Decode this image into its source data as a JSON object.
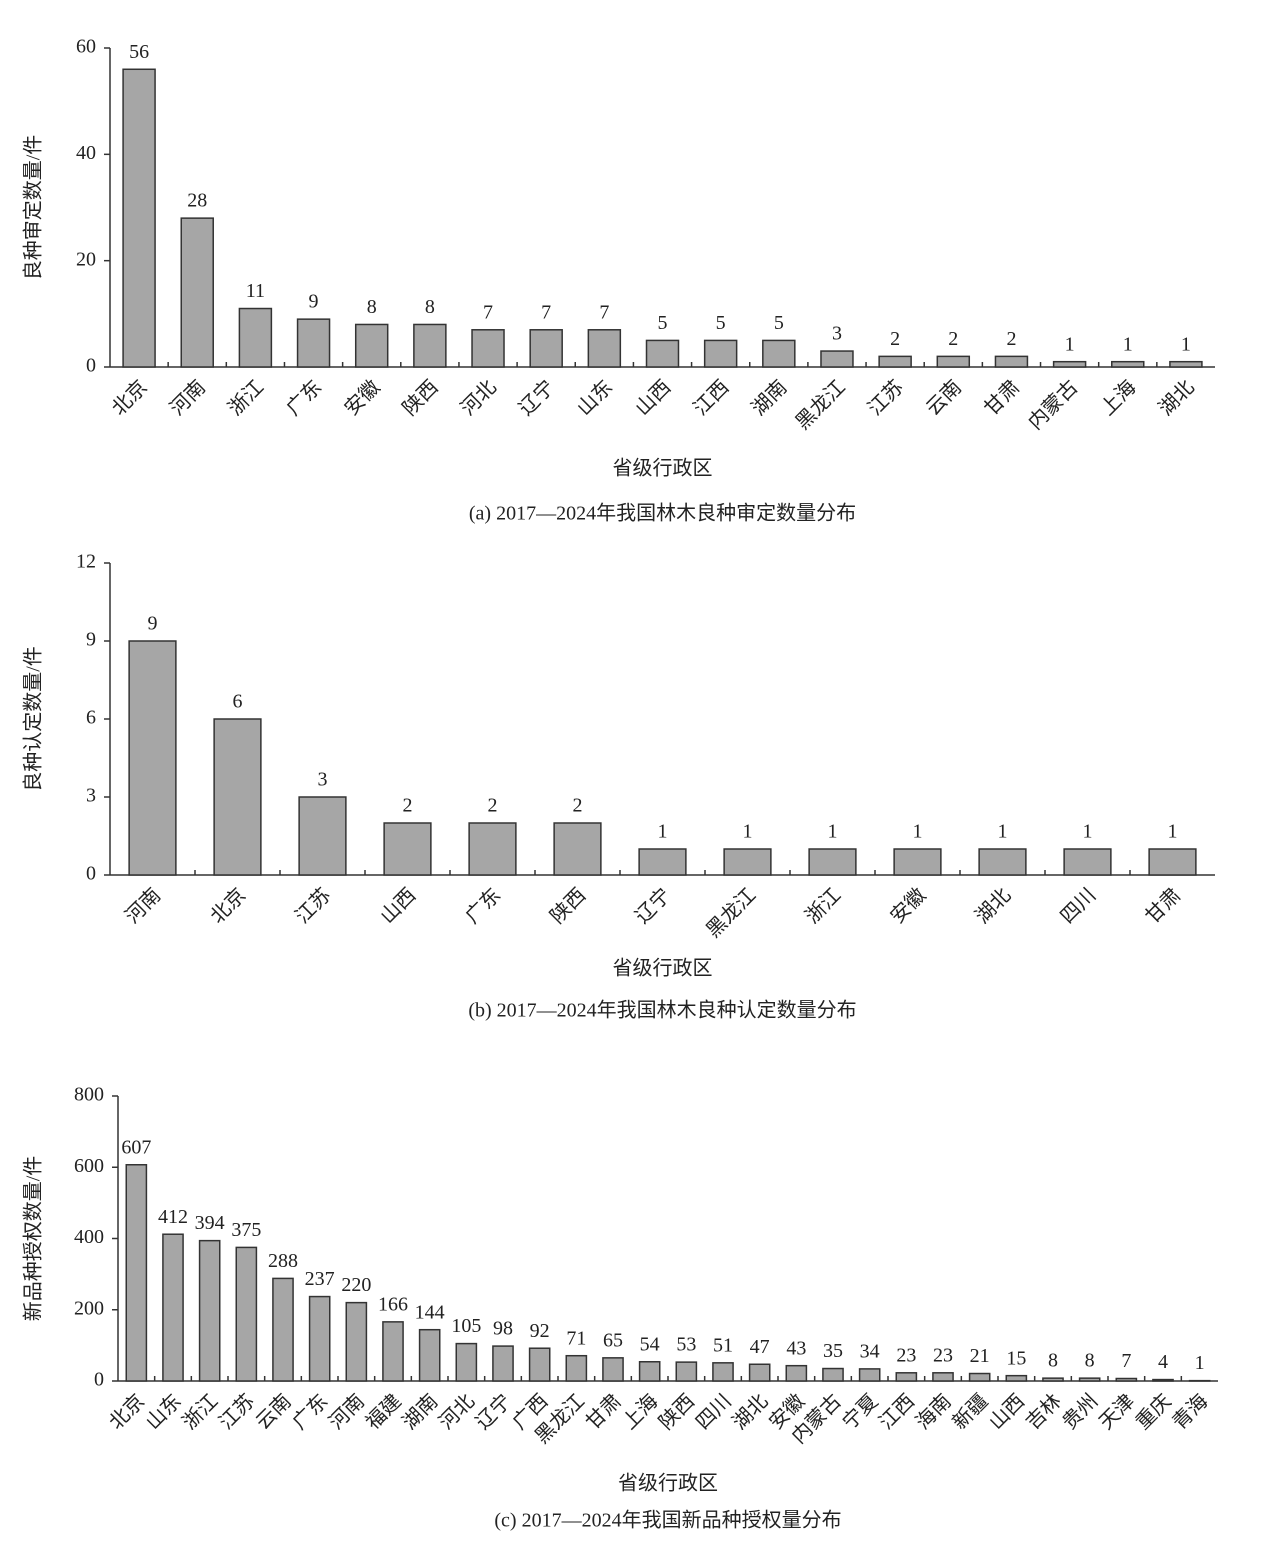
{
  "chart_data": [
    {
      "type": "bar",
      "title": "(a) 2017—2024年我国林木良种审定数量分布",
      "y_label": "良种审定数量/件",
      "x_label": "省级行政区",
      "categories": [
        "北京",
        "河南",
        "浙江",
        "广东",
        "安徽",
        "陕西",
        "河北",
        "辽宁",
        "山东",
        "山西",
        "江西",
        "湖南",
        "黑龙江",
        "江苏",
        "云南",
        "甘肃",
        "内蒙古",
        "上海",
        "湖北"
      ],
      "values": [
        56,
        28,
        11,
        9,
        8,
        8,
        7,
        7,
        7,
        5,
        5,
        5,
        3,
        2,
        2,
        2,
        1,
        1,
        1
      ],
      "color": "#a6a6a6",
      "ylim": [
        0,
        60
      ],
      "yticks": [
        0,
        20,
        40,
        60
      ],
      "grid": false
    },
    {
      "type": "bar",
      "title": "(b) 2017—2024年我国林木良种认定数量分布",
      "y_label": "良种认定数量/件",
      "x_label": "省级行政区",
      "categories": [
        "河南",
        "北京",
        "江苏",
        "山西",
        "广东",
        "陕西",
        "辽宁",
        "黑龙江",
        "浙江",
        "安徽",
        "湖北",
        "四川",
        "甘肃"
      ],
      "values": [
        9,
        6,
        3,
        2,
        2,
        2,
        1,
        1,
        1,
        1,
        1,
        1,
        1
      ],
      "color": "#a6a6a6",
      "ylim": [
        0,
        12
      ],
      "yticks": [
        0,
        3,
        6,
        9,
        12
      ],
      "grid": false
    },
    {
      "type": "bar",
      "title": "(c) 2017—2024年我国新品种授权量分布",
      "y_label": "新品种授权数量/件",
      "x_label": "省级行政区",
      "categories": [
        "北京",
        "山东",
        "浙江",
        "江苏",
        "云南",
        "广东",
        "河南",
        "福建",
        "湖南",
        "河北",
        "辽宁",
        "广西",
        "黑龙江",
        "甘肃",
        "上海",
        "陕西",
        "四川",
        "湖北",
        "安徽",
        "内蒙古",
        "宁夏",
        "江西",
        "海南",
        "新疆",
        "山西",
        "吉林",
        "贵州",
        "天津",
        "重庆",
        "青海"
      ],
      "values": [
        607,
        412,
        394,
        375,
        288,
        237,
        220,
        166,
        144,
        105,
        98,
        92,
        71,
        65,
        54,
        53,
        51,
        47,
        43,
        35,
        34,
        23,
        23,
        21,
        15,
        8,
        8,
        7,
        4,
        1
      ],
      "color": "#a6a6a6",
      "ylim": [
        0,
        800
      ],
      "yticks": [
        0,
        200,
        400,
        600,
        800
      ],
      "grid": false
    }
  ]
}
